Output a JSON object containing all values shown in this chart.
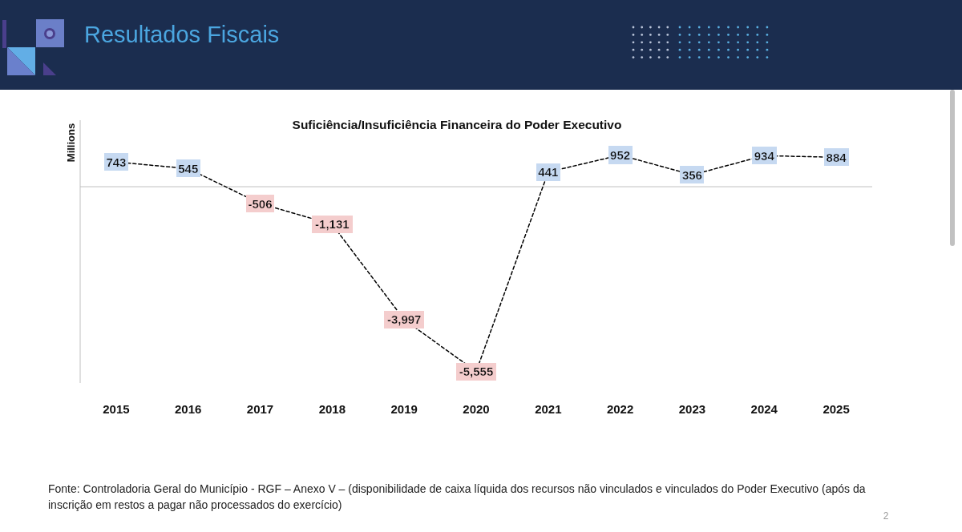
{
  "chart_data": {
    "type": "line",
    "title": "Resultados Fiscais",
    "subtitle": "Suficiência/Insuficiência Financeira do Poder Executivo",
    "ylabel": "Millions",
    "categories": [
      "2015",
      "2016",
      "2017",
      "2018",
      "2019",
      "2020",
      "2021",
      "2022",
      "2023",
      "2024",
      "2025"
    ],
    "series": [
      {
        "color": "#000000",
        "values": [
          743,
          545,
          -506,
          -1131,
          -3997,
          -5555,
          441,
          952,
          356,
          934,
          884
        ],
        "value_labels": [
          "743",
          "545",
          "-506",
          "-1,131",
          "-3,997",
          "-5,555",
          "441",
          "952",
          "356",
          "934",
          "884"
        ]
      }
    ],
    "ylim": [
      -5900,
      2000
    ],
    "tick_labels": "x",
    "line_style": "dashed",
    "annotations": [
      "Fonte: Controladoria Geral do Município - RGF – Anexo V – (disponibilidade de caixa líquida dos recursos não vinculados e vinculados do Poder Executivo (após da inscrição em restos a pagar não processados do exercício)",
      "2"
    ]
  }
}
